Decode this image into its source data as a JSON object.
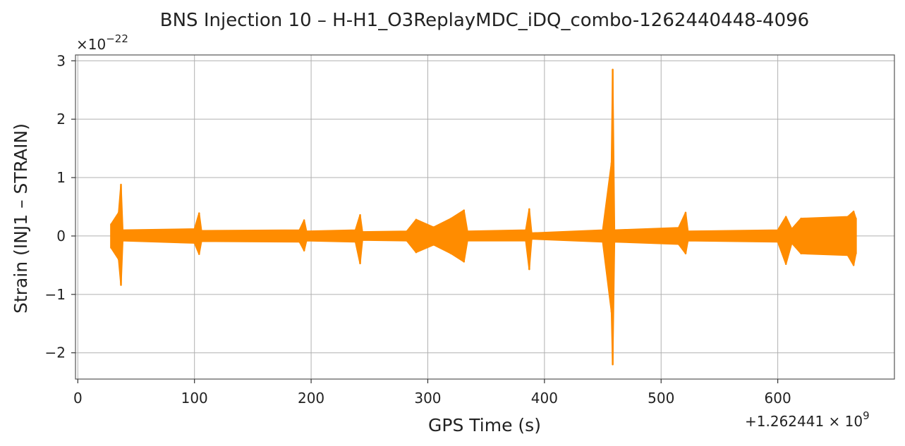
{
  "chart_data": {
    "type": "line",
    "title": "BNS Injection 10 – H-H1_O3ReplayMDC_iDQ_combo-1262440448-4096",
    "xlabel": "GPS Time (s)",
    "ylabel": "Strain (INJ1 – STRAIN)",
    "x_offset_label": "+1.262441 × 10",
    "x_offset_exp": "9",
    "y_scale_label": "×10",
    "y_scale_exp": "−22",
    "xlim": [
      -2,
      700
    ],
    "ylim": [
      -2.45,
      3.1
    ],
    "x_ticks": [
      0,
      100,
      200,
      300,
      400,
      500,
      600
    ],
    "x_tick_labels": [
      "0",
      "100",
      "200",
      "300",
      "400",
      "500",
      "600"
    ],
    "y_ticks": [
      -2,
      -1,
      0,
      1,
      2,
      3
    ],
    "y_tick_labels": [
      "−2",
      "−1",
      "0",
      "1",
      "2",
      "3"
    ],
    "grid": true,
    "series": [
      {
        "color": "#ff8c00",
        "envelope": [
          {
            "x": 28.5,
            "upper": 0.2,
            "lower": -0.2
          },
          {
            "x": 35,
            "upper": 0.4,
            "lower": -0.4
          },
          {
            "x": 37,
            "upper": 0.88,
            "lower": -0.84
          },
          {
            "x": 38.5,
            "upper": 0.1,
            "lower": -0.08
          },
          {
            "x": 100,
            "upper": 0.12,
            "lower": -0.12
          },
          {
            "x": 104,
            "upper": 0.39,
            "lower": -0.31
          },
          {
            "x": 106,
            "upper": 0.09,
            "lower": -0.09
          },
          {
            "x": 190,
            "upper": 0.1,
            "lower": -0.1
          },
          {
            "x": 194,
            "upper": 0.27,
            "lower": -0.25
          },
          {
            "x": 196,
            "upper": 0.08,
            "lower": -0.08
          },
          {
            "x": 238,
            "upper": 0.1,
            "lower": -0.1
          },
          {
            "x": 242,
            "upper": 0.36,
            "lower": -0.47
          },
          {
            "x": 244,
            "upper": 0.07,
            "lower": -0.07
          },
          {
            "x": 282,
            "upper": 0.08,
            "lower": -0.08
          },
          {
            "x": 290,
            "upper": 0.28,
            "lower": -0.28
          },
          {
            "x": 305,
            "upper": 0.15,
            "lower": -0.15
          },
          {
            "x": 320,
            "upper": 0.3,
            "lower": -0.3
          },
          {
            "x": 331,
            "upper": 0.44,
            "lower": -0.44
          },
          {
            "x": 334,
            "upper": 0.08,
            "lower": -0.08
          },
          {
            "x": 384,
            "upper": 0.1,
            "lower": -0.08
          },
          {
            "x": 387,
            "upper": 0.46,
            "lower": -0.57
          },
          {
            "x": 389,
            "upper": 0.05,
            "lower": -0.05
          },
          {
            "x": 450,
            "upper": 0.1,
            "lower": -0.1
          },
          {
            "x": 457.5,
            "upper": 1.25,
            "lower": -1.3
          },
          {
            "x": 458.5,
            "upper": 2.85,
            "lower": -2.2
          },
          {
            "x": 460,
            "upper": 0.1,
            "lower": -0.1
          },
          {
            "x": 515,
            "upper": 0.14,
            "lower": -0.14
          },
          {
            "x": 521,
            "upper": 0.4,
            "lower": -0.3
          },
          {
            "x": 523,
            "upper": 0.08,
            "lower": -0.08
          },
          {
            "x": 600,
            "upper": 0.1,
            "lower": -0.1
          },
          {
            "x": 607,
            "upper": 0.33,
            "lower": -0.48
          },
          {
            "x": 612,
            "upper": 0.12,
            "lower": -0.12
          },
          {
            "x": 620,
            "upper": 0.3,
            "lower": -0.3
          },
          {
            "x": 660,
            "upper": 0.33,
            "lower": -0.33
          },
          {
            "x": 665,
            "upper": 0.42,
            "lower": -0.5
          },
          {
            "x": 667,
            "upper": 0.3,
            "lower": -0.3
          }
        ]
      }
    ]
  }
}
